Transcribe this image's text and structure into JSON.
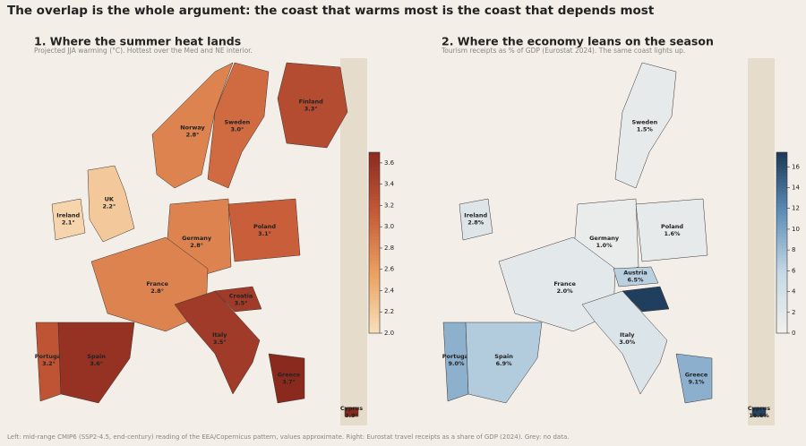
{
  "header": {
    "title": "The overlap is the whole argument: the coast that warms most is the coast that depends most"
  },
  "panels": [
    {
      "title": "1. Where the summer heat lands",
      "subtitle": "Projected JJA warming (°C). Hottest over the Med and NE interior.",
      "colorbar": {
        "lim": [
          2.0,
          3.7
        ],
        "ticks": [
          {
            "value": 2.0,
            "label": "2.0"
          },
          {
            "value": 2.2,
            "label": "2.2"
          },
          {
            "value": 2.4,
            "label": "2.4"
          },
          {
            "value": 2.6,
            "label": "2.6"
          },
          {
            "value": 2.8,
            "label": "2.8"
          },
          {
            "value": 3.0,
            "label": "3.0"
          },
          {
            "value": 3.2,
            "label": "3.2"
          },
          {
            "value": 3.4,
            "label": "3.4"
          },
          {
            "value": 3.6,
            "label": "3.6"
          }
        ]
      },
      "regions": [
        {
          "name": "Finland",
          "value": 3.3,
          "value_label": "3.3°"
        },
        {
          "name": "Norway",
          "value": 2.8,
          "value_label": "2.8°"
        },
        {
          "name": "Sweden",
          "value": 3.0,
          "value_label": "3.0°"
        },
        {
          "name": "Ireland",
          "value": 2.1,
          "value_label": "2.1°"
        },
        {
          "name": "UK",
          "value": 2.2,
          "value_label": "2.2°"
        },
        {
          "name": "Germany",
          "value": 2.8,
          "value_label": "2.8°"
        },
        {
          "name": "Poland",
          "value": 3.1,
          "value_label": "3.1°"
        },
        {
          "name": "France",
          "value": 2.8,
          "value_label": "2.8°"
        },
        {
          "name": "Croatia",
          "value": 3.5,
          "value_label": "3.5°"
        },
        {
          "name": "Italy",
          "value": 3.5,
          "value_label": "3.5°"
        },
        {
          "name": "Portugal",
          "value": 3.2,
          "value_label": "3.2°"
        },
        {
          "name": "Spain",
          "value": 3.6,
          "value_label": "3.6°"
        },
        {
          "name": "Greece",
          "value": 3.7,
          "value_label": "3.7°"
        },
        {
          "name": "Cyprus",
          "value": 3.9,
          "value_label": "3.9°"
        }
      ]
    },
    {
      "title": "2. Where the economy leans on the season",
      "subtitle": "Tourism receipts as % of GDP (Eurostat 2024). The same coast lights up.",
      "colorbar": {
        "lim": [
          0,
          17.4
        ],
        "ticks": [
          0,
          2,
          4,
          6,
          8,
          10,
          12,
          14,
          16
        ]
      },
      "regions": [
        {
          "name": "Sweden",
          "value": 1.5,
          "value_label": "1.5%"
        },
        {
          "name": "Ireland",
          "value": 2.8,
          "value_label": "2.8%"
        },
        {
          "name": "Germany",
          "value": 1.0,
          "value_label": "1.0%"
        },
        {
          "name": "Poland",
          "value": 1.6,
          "value_label": "1.6%"
        },
        {
          "name": "France",
          "value": 2.0,
          "value_label": "2.0%"
        },
        {
          "name": "Austria",
          "value": 6.5,
          "value_label": "6.5%"
        },
        {
          "name": null,
          "value": 17.0,
          "value_label": null
        },
        {
          "name": "Italy",
          "value": 3.0,
          "value_label": "3.0%"
        },
        {
          "name": "Portugal",
          "value": 9.0,
          "value_label": "9.0%"
        },
        {
          "name": "Spain",
          "value": 6.9,
          "value_label": "6.9%"
        },
        {
          "name": "Greece",
          "value": 9.1,
          "value_label": "9.1%"
        },
        {
          "name": "Cyprus",
          "value": 16.6,
          "value_label": "16.6%"
        }
      ]
    }
  ],
  "footer": "Left: mid-range CMIP6 (SSP2-4.5, end-century) reading of the EEA/Copernicus pattern, values approximate. Right: Eurostat travel receipts as a share of GDP (2024). Grey: no data."
}
